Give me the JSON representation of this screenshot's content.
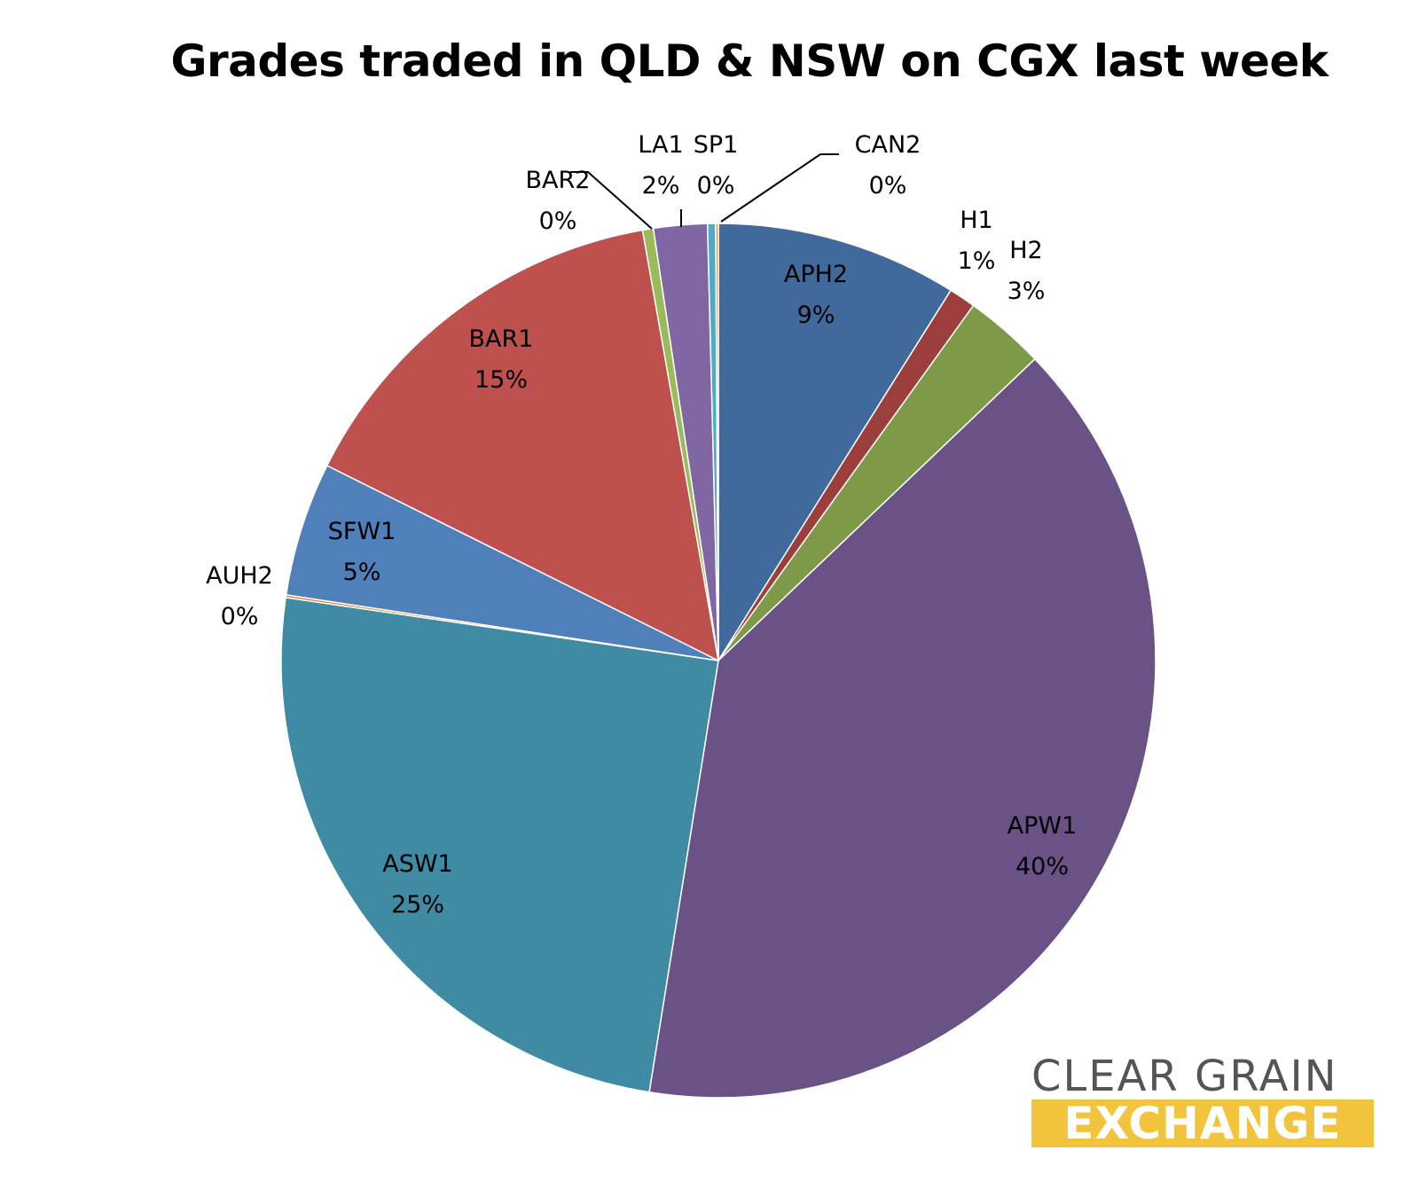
{
  "chart_data": {
    "type": "pie",
    "title": "Grades traded in QLD & NSW on CGX last week",
    "slices": [
      {
        "label": "APH2",
        "value": 9,
        "pct_label": "9%",
        "color": "#416a9c"
      },
      {
        "label": "H1",
        "value": 1,
        "pct_label": "1%",
        "color": "#9c3e3b"
      },
      {
        "label": "H2",
        "value": 3,
        "pct_label": "3%",
        "color": "#7e9a48"
      },
      {
        "label": "APW1",
        "value": 40,
        "pct_label": "40%",
        "color": "#6a5186"
      },
      {
        "label": "ASW1",
        "value": 25,
        "pct_label": "25%",
        "color": "#3e8ba3"
      },
      {
        "label": "AUH2",
        "value": 0.1,
        "pct_label": "0%",
        "color": "#e2822f"
      },
      {
        "label": "SFW1",
        "value": 5,
        "pct_label": "5%",
        "color": "#4f80ba"
      },
      {
        "label": "BAR1",
        "value": 15,
        "pct_label": "15%",
        "color": "#be504d"
      },
      {
        "label": "BAR2",
        "value": 0.4,
        "pct_label": "0%",
        "color": "#9bbb59"
      },
      {
        "label": "LA1",
        "value": 2,
        "pct_label": "2%",
        "color": "#8066a2"
      },
      {
        "label": "SP1",
        "value": 0.3,
        "pct_label": "0%",
        "color": "#4aacc6"
      },
      {
        "label": "CAN2",
        "value": 0.1,
        "pct_label": "0%",
        "color": "#f79646"
      }
    ]
  },
  "logo": {
    "line1": "CLEAR GRAIN",
    "line2": "EXCHANGE",
    "line1_color": "#555555",
    "line2_bg": "#f2c33c"
  }
}
